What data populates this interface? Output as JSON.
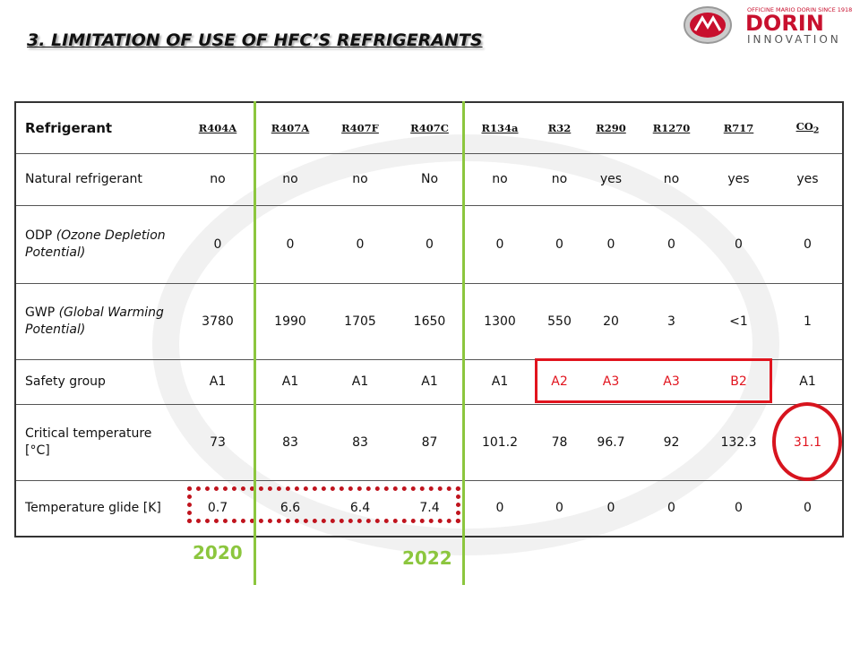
{
  "header": {
    "title": "3. LIMITATION OF USE OF HFC’S REFRIGERANTS"
  },
  "logo": {
    "tagline": "OFFICINE MARIO DORIN SINCE 1918",
    "name": "DORIN",
    "subtitle": "INNOVATION"
  },
  "table": {
    "corner": "Refrigerant",
    "header": [
      "R404A",
      "R407A",
      "R407F",
      "R407C",
      "R134a",
      "R32",
      "R290",
      "R1270",
      "R717",
      {
        "text": "CO",
        "sub": "2"
      }
    ],
    "rows": [
      {
        "label": "Natural refrigerant",
        "cells": [
          "no",
          "no",
          "no",
          "No",
          "no",
          "no",
          "yes",
          "no",
          "yes",
          "yes"
        ]
      },
      {
        "label": "ODP",
        "note": "(Ozone Depletion Potential)",
        "cells": [
          "0",
          "0",
          "0",
          "0",
          "0",
          "0",
          "0",
          "0",
          "0",
          "0"
        ]
      },
      {
        "label": "GWP",
        "note": "(Global Warming Potential)",
        "cells": [
          "3780",
          "1990",
          "1705",
          "1650",
          "1300",
          "550",
          "20",
          "3",
          "<1",
          "1"
        ]
      },
      {
        "label": "Safety group",
        "cells": [
          "A1",
          "A1",
          "A1",
          "A1",
          "A1",
          "A2",
          "A3",
          "A3",
          "B2",
          "A1"
        ]
      },
      {
        "label": "Critical temperature [°C]",
        "cells": [
          "73",
          "83",
          "83",
          "87",
          "101.2",
          "78",
          "96.7",
          "92",
          "132.3",
          "31.1"
        ]
      },
      {
        "label": "Temperature glide [K]",
        "cells": [
          "0.7",
          "6.6",
          "6.4",
          "7.4",
          "0",
          "0",
          "0",
          "0",
          "0",
          "0"
        ]
      }
    ]
  },
  "annotations": [
    "2020",
    "2022"
  ]
}
